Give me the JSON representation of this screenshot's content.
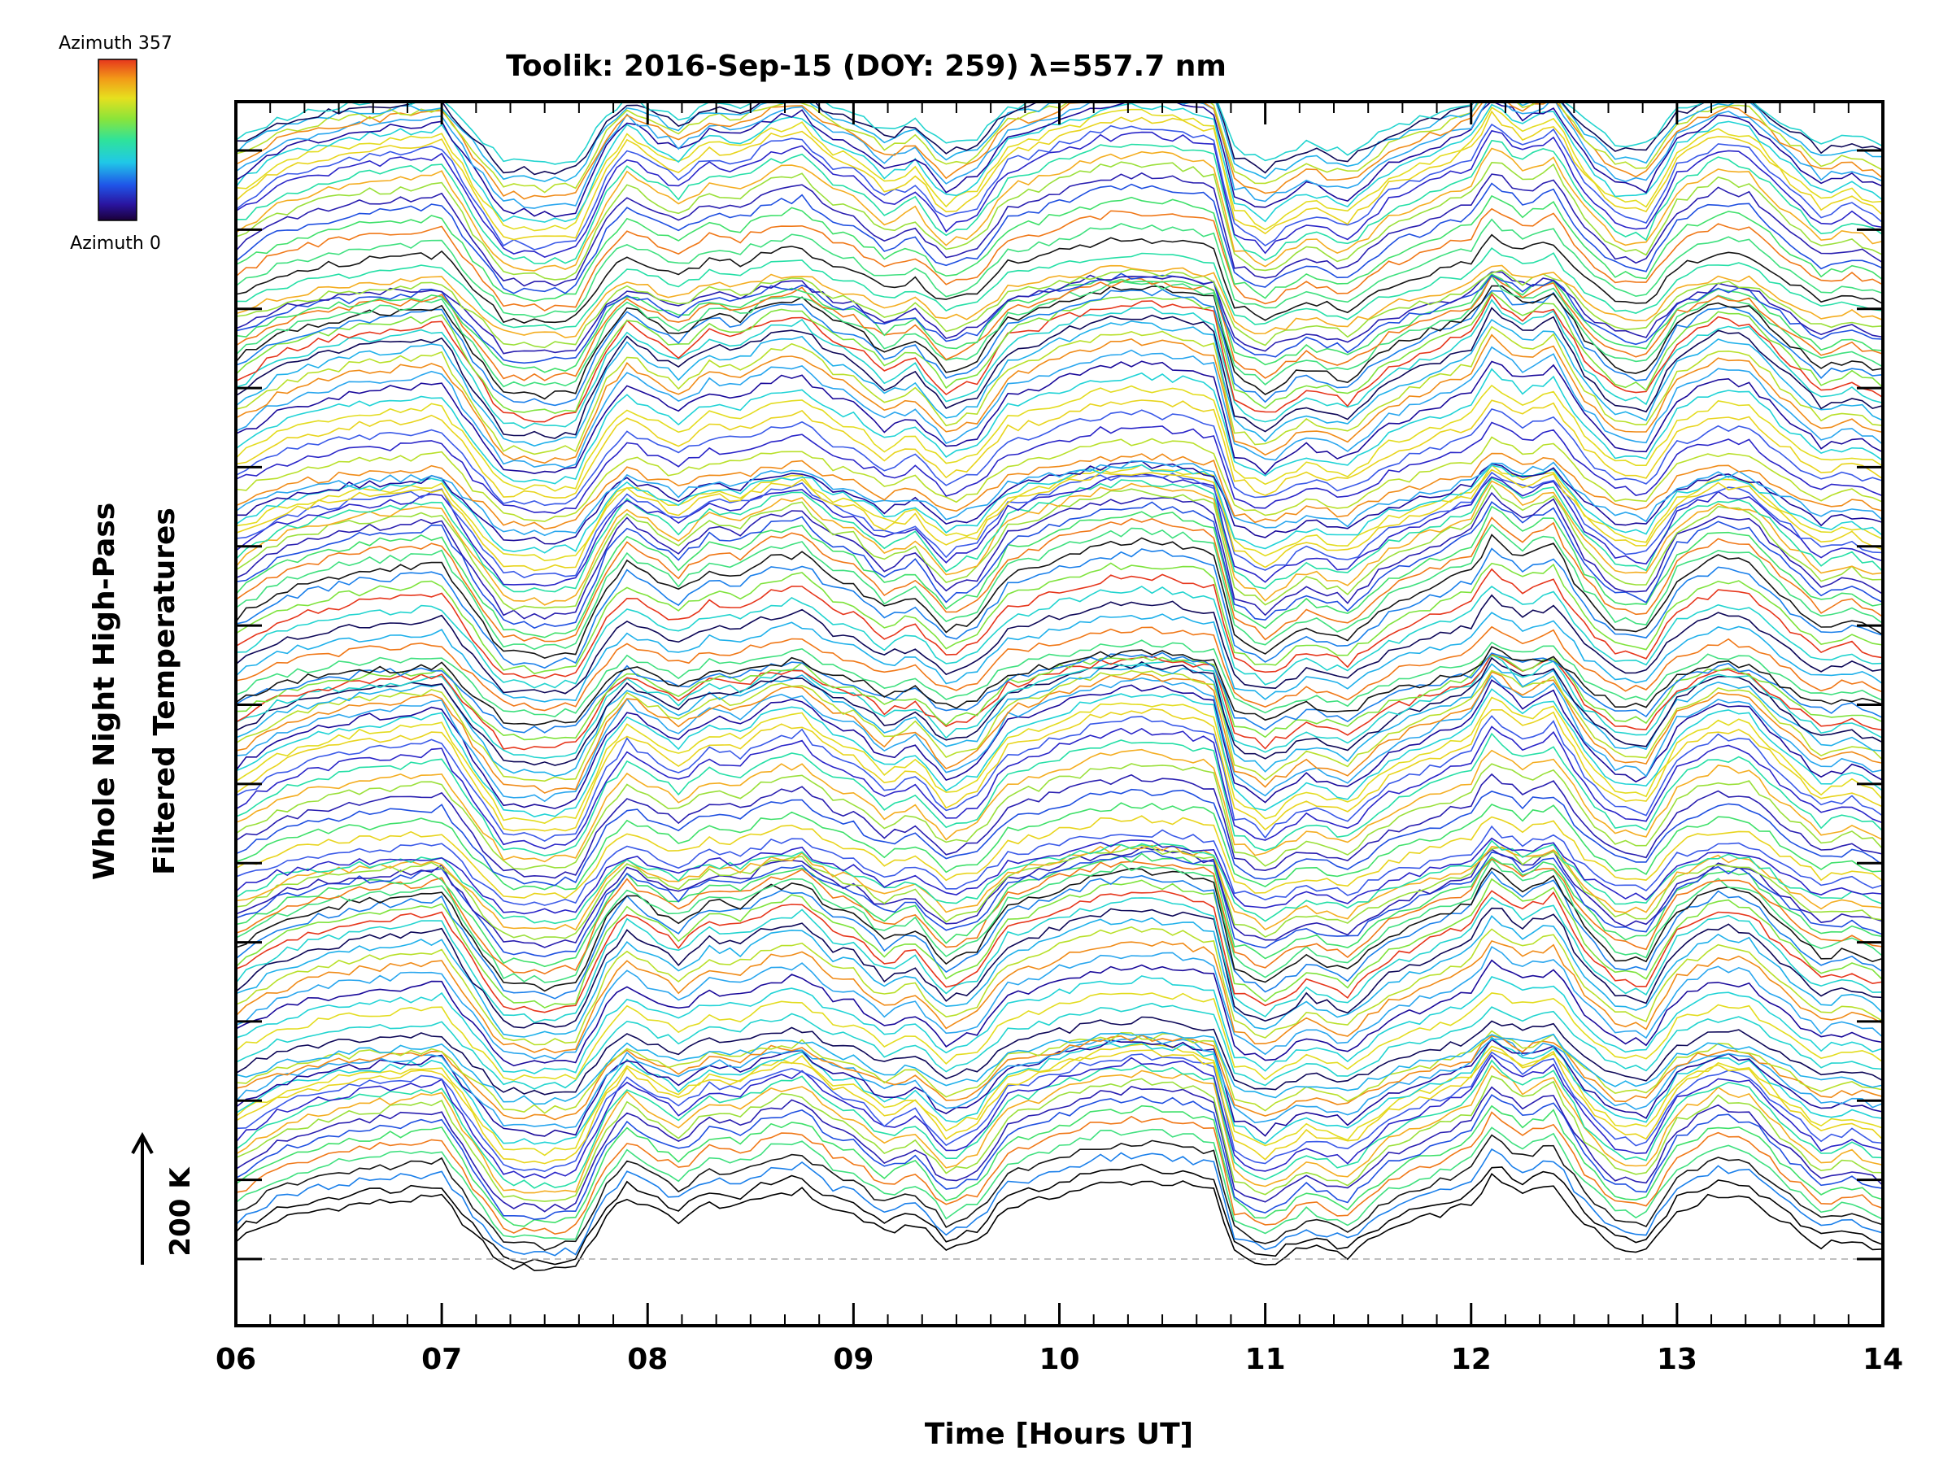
{
  "chart_data": {
    "type": "line",
    "title": "Toolik: 2016-Sep-15 (DOY: 259) λ=557.7 nm",
    "xlabel": "Time [Hours UT]",
    "ylabel_line1": "Whole Night High-Pass",
    "ylabel_line2": "Filtered Temperatures",
    "xlim": [
      6,
      14
    ],
    "x_ticks": [
      "06",
      "07",
      "08",
      "09",
      "10",
      "11",
      "12",
      "13",
      "14"
    ],
    "y_tick_count": 15,
    "colorbar": {
      "label_top": "Azimuth 357",
      "label_bottom": "Azimuth 0",
      "min": 0,
      "max": 357
    },
    "scale_bar_label": "200 K",
    "series_count": 141,
    "series_azimuth_step_deg": 2.5,
    "baseline_dashed": true,
    "common_profile": {
      "description": "Filtered temperature perturbation vs time shared by the azimuth series, in K relative to each series baseline",
      "x": [
        6.0,
        6.2,
        6.4,
        6.6,
        6.8,
        7.0,
        7.15,
        7.3,
        7.5,
        7.65,
        7.8,
        7.9,
        8.0,
        8.15,
        8.3,
        8.45,
        8.6,
        8.75,
        8.9,
        9.0,
        9.15,
        9.3,
        9.45,
        9.6,
        9.75,
        9.9,
        10.0,
        10.2,
        10.4,
        10.6,
        10.75,
        10.85,
        11.0,
        11.2,
        11.4,
        11.6,
        11.8,
        12.0,
        12.1,
        12.25,
        12.4,
        12.55,
        12.7,
        12.85,
        13.0,
        13.2,
        13.35,
        13.5,
        13.7,
        13.85,
        14.0
      ],
      "y": [
        60,
        120,
        150,
        170,
        180,
        190,
        80,
        -20,
        -30,
        -20,
        130,
        190,
        160,
        120,
        170,
        160,
        200,
        210,
        150,
        140,
        80,
        110,
        30,
        60,
        160,
        180,
        200,
        230,
        240,
        230,
        210,
        20,
        -20,
        40,
        10,
        90,
        130,
        170,
        250,
        200,
        230,
        110,
        40,
        30,
        150,
        200,
        190,
        120,
        40,
        60,
        30
      ]
    }
  }
}
